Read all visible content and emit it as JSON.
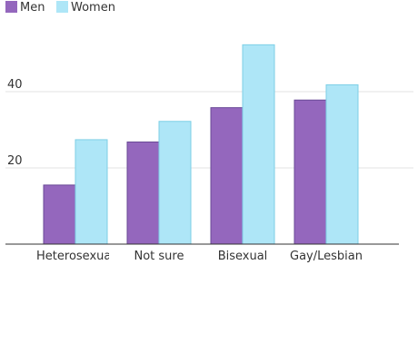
{
  "chart_data": {
    "type": "bar",
    "categories": [
      "Heterosexual",
      "Not sure",
      "Bisexual",
      "Gay/Lesbian"
    ],
    "series": [
      {
        "name": "Men",
        "values": [
          15.5,
          26.8,
          35.8,
          37.8
        ],
        "color": "#9467bd"
      },
      {
        "name": "Women",
        "values": [
          27.4,
          32.2,
          52.3,
          41.8
        ],
        "color": "#aee6f7"
      }
    ],
    "yticks": [
      20,
      40
    ],
    "ylim": [
      0,
      60
    ],
    "grid": true,
    "legend": "top-left"
  }
}
